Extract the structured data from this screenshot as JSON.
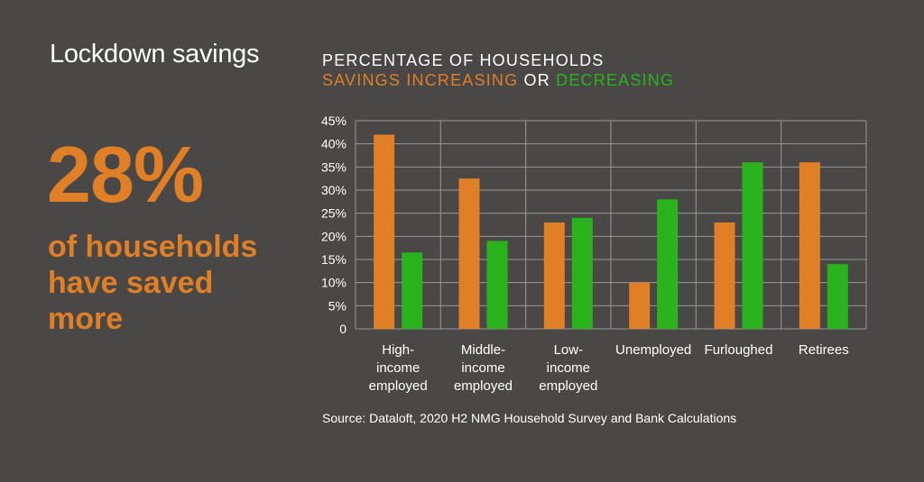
{
  "left_panel": {
    "heading": "Lockdown savings",
    "big_stat": "28%",
    "stat_description": "of households\nhave saved\nmore"
  },
  "chart_title": {
    "line1": "PERCENTAGE OF HOUSEHOLDS",
    "increasing_text": "SAVINGS INCREASING",
    "or_text": "OR",
    "decreasing_text": "DECREASING"
  },
  "source": "Source: Dataloft, 2020 H2 NMG Household Survey and Bank Calculations",
  "colors": {
    "background": "#4a4846",
    "increasing": "#e07f26",
    "decreasing": "#2bb31d",
    "grid": "#9a9896",
    "text": "#ffffff"
  },
  "chart_data": {
    "type": "bar",
    "title": "PERCENTAGE OF HOUSEHOLDS SAVINGS INCREASING OR DECREASING",
    "categories": [
      [
        "High-",
        "income",
        "employed"
      ],
      [
        "Middle-",
        "income",
        "employed"
      ],
      [
        "Low-",
        "income",
        "employed"
      ],
      [
        "Unemployed"
      ],
      [
        "Furloughed"
      ],
      [
        "Retirees"
      ]
    ],
    "series": [
      {
        "name": "Savings increasing",
        "color": "#e07f26",
        "values": [
          42,
          32.5,
          23,
          10,
          23,
          36
        ]
      },
      {
        "name": "Savings decreasing",
        "color": "#2bb31d",
        "values": [
          16.5,
          19,
          24,
          28,
          36,
          14
        ]
      }
    ],
    "yticks": [
      "0",
      "5%",
      "10%",
      "15%",
      "20%",
      "25%",
      "30%",
      "35%",
      "40%",
      "45%"
    ],
    "ylim": [
      0,
      45
    ],
    "grid": true
  }
}
